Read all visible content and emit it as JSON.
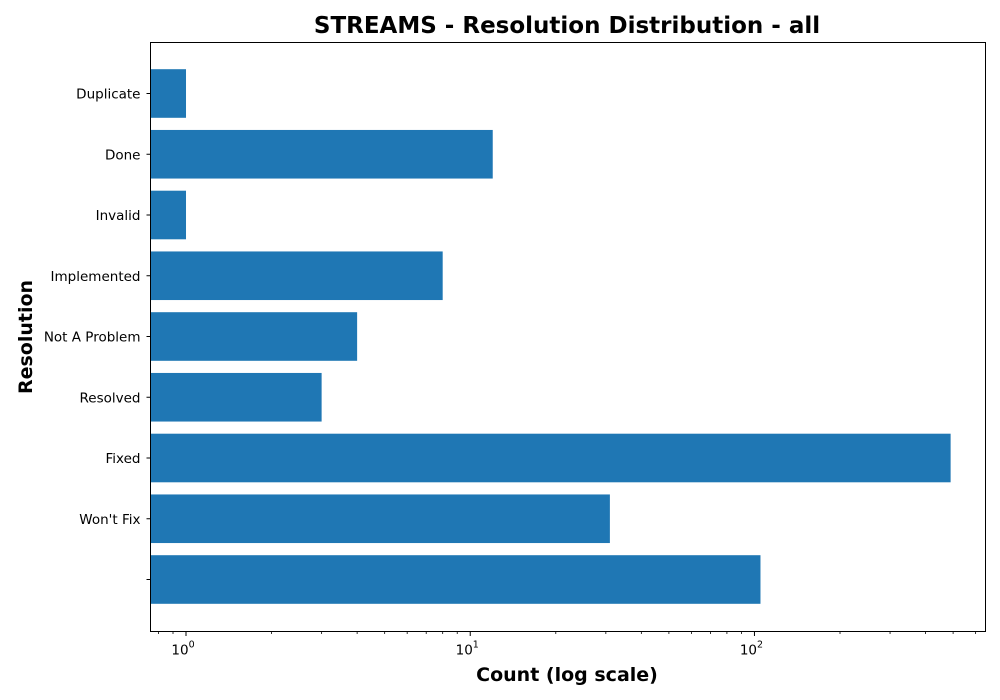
{
  "chart_data": {
    "type": "bar",
    "orientation": "horizontal",
    "title": "STREAMS - Resolution Distribution - all",
    "xlabel": "Count (log scale)",
    "ylabel": "Resolution",
    "x_scale": "log",
    "xlim": [
      0.75,
      650
    ],
    "x_major_ticks": [
      {
        "value": 1,
        "base": "10",
        "exp": "0"
      },
      {
        "value": 10,
        "base": "10",
        "exp": "1"
      },
      {
        "value": 100,
        "base": "10",
        "exp": "2"
      }
    ],
    "categories": [
      "Duplicate",
      "Done",
      "Invalid",
      "Implemented",
      "Not A Problem",
      "Resolved",
      "Fixed",
      "Won't Fix",
      ""
    ],
    "values": [
      1,
      12,
      1,
      8,
      4,
      3,
      490,
      31,
      105
    ],
    "bar_color": "#1f77b4"
  }
}
